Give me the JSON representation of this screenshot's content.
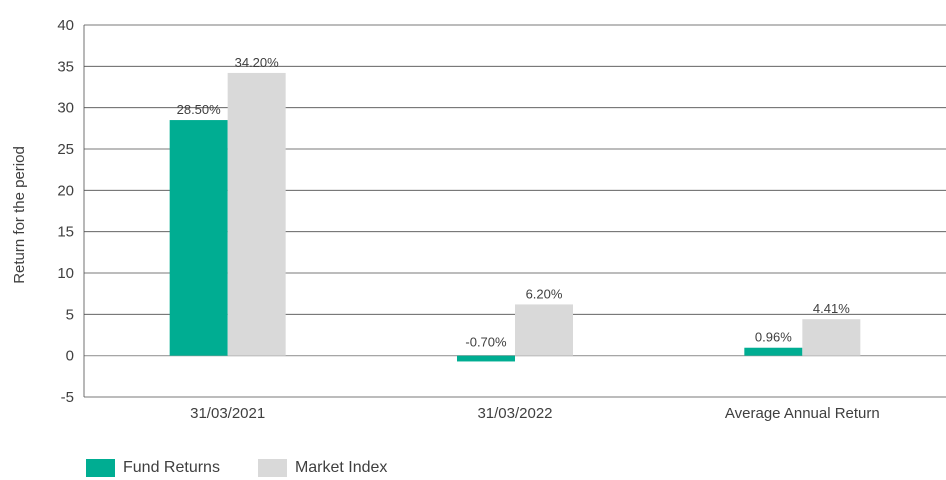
{
  "chart_data": {
    "type": "bar",
    "categories": [
      "31/03/2021",
      "31/03/2022",
      "Average Annual Return"
    ],
    "series": [
      {
        "name": "Fund Returns",
        "values": [
          28.5,
          -0.7,
          0.96
        ],
        "labels": [
          "28.50%",
          "-0.70%",
          "0.96%"
        ],
        "color": "#00ad92"
      },
      {
        "name": "Market Index",
        "values": [
          34.2,
          6.2,
          4.41
        ],
        "labels": [
          "34.20%",
          "6.20%",
          "4.41%"
        ],
        "color": "#d9d9d9"
      }
    ],
    "ylabel": "Return for the period",
    "xlabel": "",
    "ylim": [
      -5,
      40
    ],
    "yticks": [
      "40",
      "35",
      "30",
      "25",
      "20",
      "15",
      "10",
      "5",
      "0",
      "-5"
    ],
    "grid": true,
    "legend_position": "bottom-left"
  }
}
